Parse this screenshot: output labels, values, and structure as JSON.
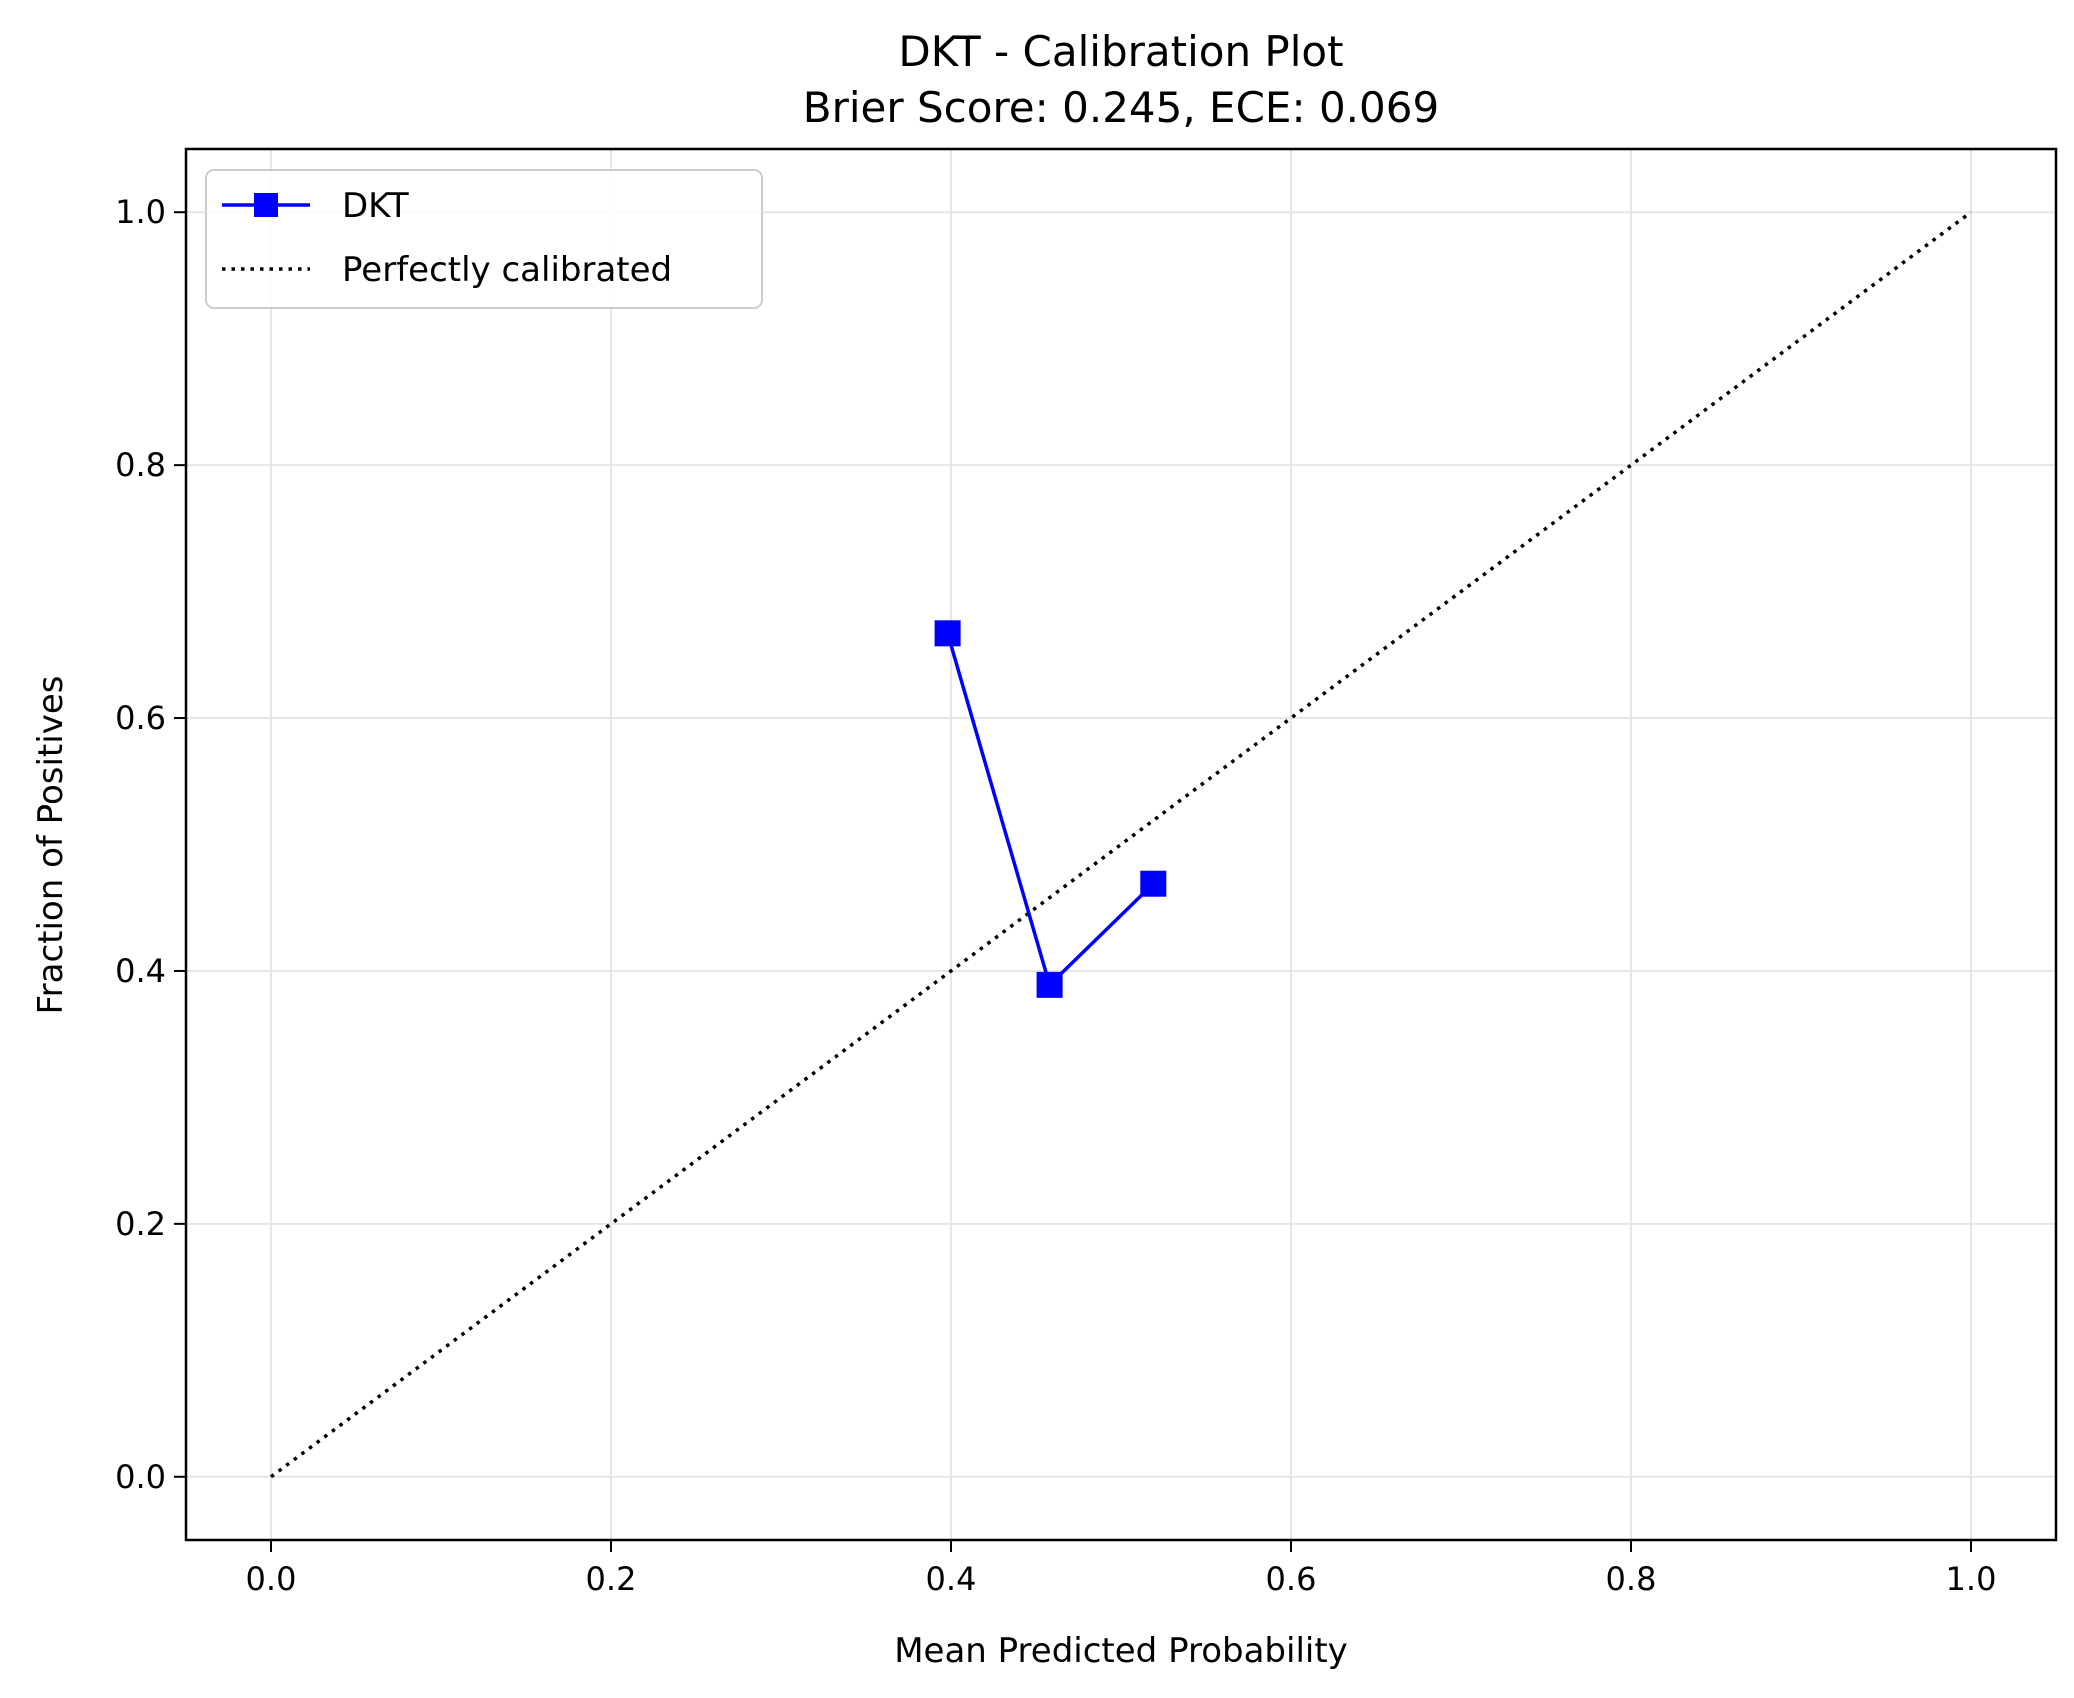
{
  "chart_data": {
    "type": "line",
    "title": "DKT - Calibration Plot",
    "subtitle": "Brier Score: 0.245, ECE: 0.069",
    "xlabel": "Mean Predicted Probability",
    "ylabel": "Fraction of Positives",
    "xlim": [
      -0.05,
      1.05
    ],
    "ylim": [
      -0.05,
      1.05
    ],
    "xticks": [
      0.0,
      0.2,
      0.4,
      0.6,
      0.8,
      1.0
    ],
    "xtick_labels": [
      "0.0",
      "0.2",
      "0.4",
      "0.6",
      "0.8",
      "1.0"
    ],
    "yticks": [
      0.0,
      0.2,
      0.4,
      0.6,
      0.8,
      1.0
    ],
    "ytick_labels": [
      "0.0",
      "0.2",
      "0.4",
      "0.6",
      "0.8",
      "1.0"
    ],
    "grid": true,
    "legend_position": "top-left",
    "series": [
      {
        "name": "DKT",
        "style": "solid",
        "marker": "square",
        "color": "#0000ff",
        "x": [
          0.398,
          0.458,
          0.519
        ],
        "y": [
          0.667,
          0.389,
          0.469
        ]
      },
      {
        "name": "Perfectly calibrated",
        "style": "dotted",
        "marker": "none",
        "color": "#000000",
        "x": [
          0.0,
          1.0
        ],
        "y": [
          0.0,
          1.0
        ]
      }
    ]
  }
}
